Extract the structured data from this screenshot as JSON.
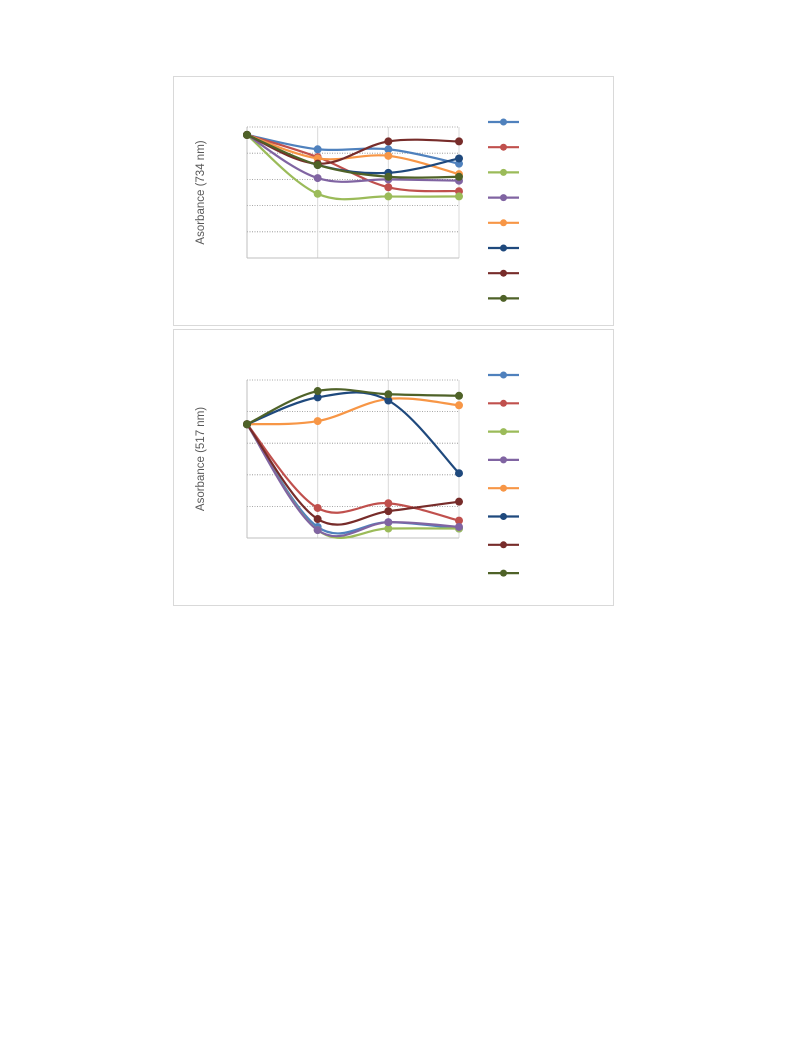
{
  "chart_data": [
    {
      "type": "line",
      "title": "",
      "ylabel": "Asorbance (734 nm)",
      "xlabel": "",
      "x": [
        0,
        1,
        2,
        3
      ],
      "ylim": [
        0,
        5
      ],
      "grid": true,
      "smooth": true,
      "legend_position": "right",
      "series": [
        {
          "values": [
            4.7,
            4.15,
            4.15,
            3.6
          ],
          "color": "#4f81bd"
        },
        {
          "values": [
            4.7,
            3.85,
            2.7,
            2.55
          ],
          "color": "#c0504d"
        },
        {
          "values": [
            4.7,
            2.45,
            2.35,
            2.35
          ],
          "color": "#9bbb59"
        },
        {
          "values": [
            4.7,
            3.05,
            3.0,
            2.95
          ],
          "color": "#8064a2"
        },
        {
          "values": [
            4.7,
            3.8,
            3.9,
            3.2
          ],
          "color": "#f79646"
        },
        {
          "values": [
            4.7,
            3.55,
            3.25,
            3.8
          ],
          "color": "#1f497d"
        },
        {
          "values": [
            4.7,
            3.6,
            4.45,
            4.45
          ],
          "color": "#772c2a"
        },
        {
          "values": [
            4.7,
            3.55,
            3.1,
            3.1
          ],
          "color": "#4f6228"
        }
      ]
    },
    {
      "type": "line",
      "title": "",
      "ylabel": "Asorbance (517 nm)",
      "xlabel": "",
      "x": [
        0,
        1,
        2,
        3
      ],
      "ylim": [
        0,
        5
      ],
      "grid": true,
      "smooth": true,
      "legend_position": "right",
      "series": [
        {
          "values": [
            3.6,
            0.35,
            0.5,
            0.3
          ],
          "color": "#4f81bd"
        },
        {
          "values": [
            3.6,
            0.95,
            1.1,
            0.55
          ],
          "color": "#c0504d"
        },
        {
          "values": [
            3.6,
            0.25,
            0.3,
            0.3
          ],
          "color": "#9bbb59"
        },
        {
          "values": [
            3.6,
            0.25,
            0.5,
            0.35
          ],
          "color": "#8064a2"
        },
        {
          "values": [
            3.6,
            3.7,
            4.4,
            4.2
          ],
          "color": "#f79646"
        },
        {
          "values": [
            3.6,
            4.45,
            4.35,
            2.05
          ],
          "color": "#1f497d"
        },
        {
          "values": [
            3.6,
            0.6,
            0.85,
            1.15
          ],
          "color": "#772c2a"
        },
        {
          "values": [
            3.6,
            4.65,
            4.55,
            4.5
          ],
          "color": "#4f6228"
        }
      ]
    }
  ]
}
